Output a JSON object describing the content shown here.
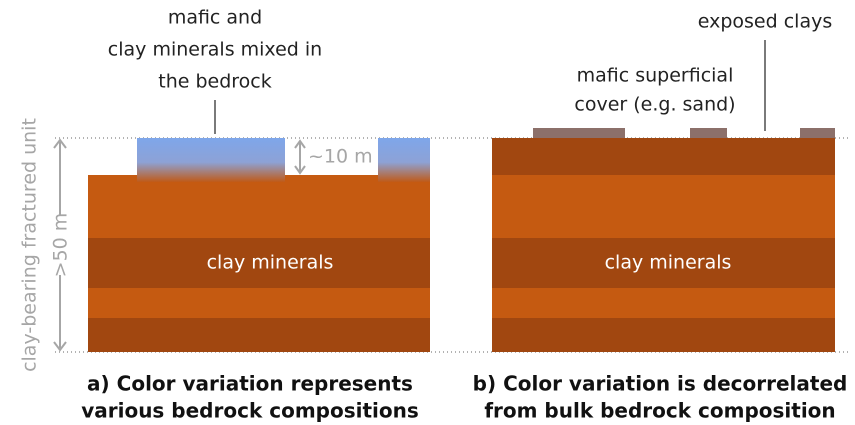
{
  "side_label": "clay-bearing fractured unit",
  "depth_label": ">50 m",
  "panel_a": {
    "annotation": [
      "mafic and",
      "clay minerals mixed in",
      "the bedrock"
    ],
    "thickness_label": "~10 m",
    "center_label": "clay minerals",
    "caption": [
      "a) Color variation represents",
      "various bedrock compositions"
    ]
  },
  "panel_b": {
    "annotation_cover": [
      "mafic superficial",
      "cover (e.g. sand)"
    ],
    "annotation_clays": "exposed clays",
    "center_label": "clay minerals",
    "caption": [
      "b) Color variation is decorrelated",
      "from bulk bedrock composition"
    ]
  }
}
